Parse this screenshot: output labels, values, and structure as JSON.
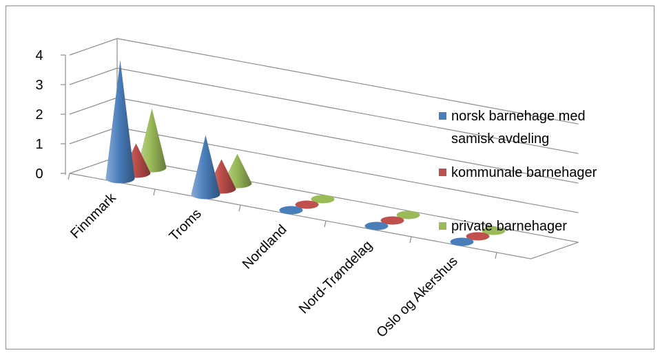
{
  "chart_data": {
    "type": "bar",
    "style": "3d-cone",
    "categories": [
      "Finnmark",
      "Troms",
      "Nordland",
      "Nord-Trøndelag",
      "Oslo og Akershus"
    ],
    "series": [
      {
        "name": "norsk barnehage med samisk avdeling",
        "values": [
          4,
          2,
          0,
          0,
          0
        ],
        "color": "#4a7ebb"
      },
      {
        "name": "kommunale barnehager",
        "values": [
          1,
          1,
          0,
          0,
          0
        ],
        "color": "#c0504d"
      },
      {
        "name": "private barnehager",
        "values": [
          2,
          1,
          0,
          0,
          0
        ],
        "color": "#9bbb59"
      }
    ],
    "yticks": [
      "0",
      "1",
      "2",
      "3",
      "4"
    ],
    "ylim": [
      0,
      4
    ],
    "grid": true,
    "legend": "right",
    "legend_lines": [
      [
        "norsk barnehage med",
        "samisk avdeling"
      ],
      [
        "kommunale barnehager"
      ],
      [
        "private barnehager"
      ]
    ]
  }
}
